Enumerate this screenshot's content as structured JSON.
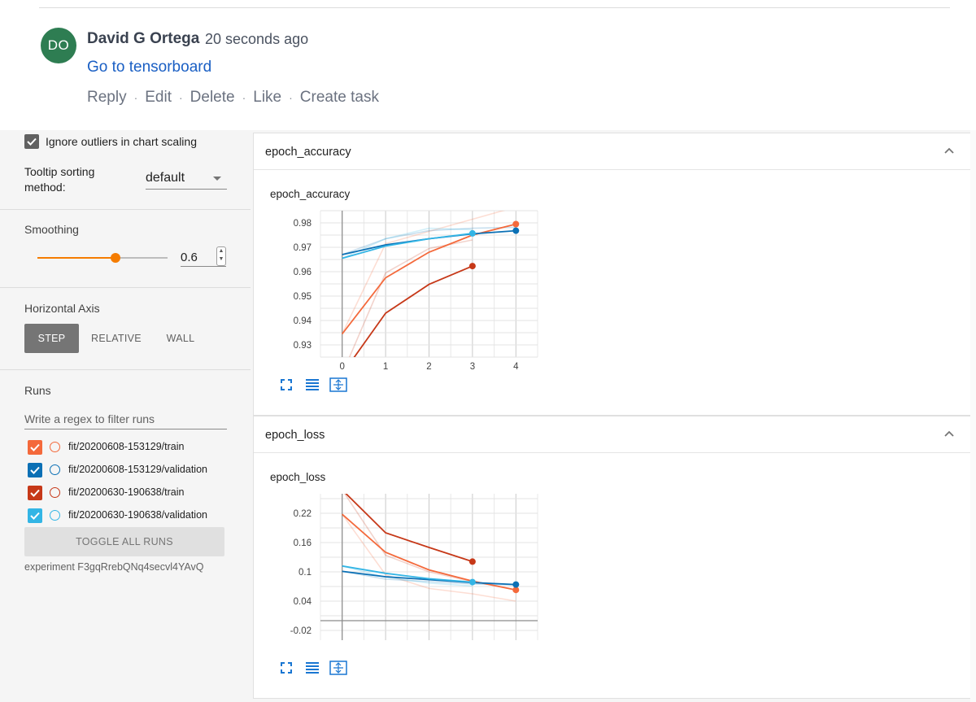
{
  "comment": {
    "avatar_initials": "DO",
    "author": "David G Ortega",
    "time": "20 seconds ago",
    "link": "Go to tensorboard",
    "actions": [
      "Reply",
      "Edit",
      "Delete",
      "Like",
      "Create task"
    ]
  },
  "sidebar": {
    "ignore_outliers_label": "Ignore outliers in chart scaling",
    "ignore_outliers_checked": true,
    "tooltip_sorting_label_1": "Tooltip sorting",
    "tooltip_sorting_label_2": "method:",
    "tooltip_sorting_value": "default",
    "smoothing_label": "Smoothing",
    "smoothing_value": "0.6",
    "smoothing_fraction": 0.6,
    "horizontal_axis_label": "Horizontal Axis",
    "axis_options": [
      "STEP",
      "RELATIVE",
      "WALL"
    ],
    "axis_selected": "STEP",
    "runs_label": "Runs",
    "filter_placeholder": "Write a regex to filter runs",
    "runs": [
      {
        "name": "fit/20200608-153129/train",
        "color": "#f4693b",
        "checked": true
      },
      {
        "name": "fit/20200608-153129/validation",
        "color": "#0b70b5",
        "checked": true
      },
      {
        "name": "fit/20200630-190638/train",
        "color": "#c63818",
        "checked": true
      },
      {
        "name": "fit/20200630-190638/validation",
        "color": "#33b5e5",
        "checked": true
      }
    ],
    "toggle_all_label": "TOGGLE ALL RUNS",
    "experiment_label": "experiment F3gqRrebQNq4secvl4YAvQ"
  },
  "cards": [
    {
      "header": "epoch_accuracy",
      "chart_title": "epoch_accuracy"
    },
    {
      "header": "epoch_loss",
      "chart_title": "epoch_loss"
    }
  ],
  "chart_data": [
    {
      "type": "line",
      "title": "epoch_accuracy",
      "xlabel": "",
      "ylabel": "",
      "x_ticks": [
        "0",
        "1",
        "2",
        "3",
        "4"
      ],
      "y_ticks": [
        "0.93",
        "0.94",
        "0.95",
        "0.96",
        "0.97",
        "0.98"
      ],
      "xlim": [
        -0.5,
        4.5
      ],
      "ylim": [
        0.925,
        0.985
      ],
      "grid": true,
      "series": [
        {
          "color": "#f4693b",
          "x": [
            0,
            1,
            2,
            3,
            4
          ],
          "y": [
            0.9345,
            0.9575,
            0.968,
            0.975,
            0.9795
          ]
        },
        {
          "color": "#0b70b5",
          "x": [
            0,
            1,
            2,
            3,
            4
          ],
          "y": [
            0.967,
            0.971,
            0.9735,
            0.9755,
            0.9768
          ]
        },
        {
          "color": "#c63818",
          "x": [
            0,
            1,
            2,
            3
          ],
          "y": [
            0.918,
            0.943,
            0.9548,
            0.9623
          ]
        },
        {
          "color": "#33b5e5",
          "x": [
            0,
            1,
            2,
            3
          ],
          "y": [
            0.9655,
            0.9705,
            0.9735,
            0.9757
          ]
        }
      ],
      "raw_series": [
        {
          "color": "#f4693b",
          "x": [
            0,
            1,
            2,
            3,
            4
          ],
          "y": [
            0.9345,
            0.9715,
            0.9765,
            0.9815,
            0.9865
          ]
        },
        {
          "color": "#0b70b5",
          "x": [
            0,
            1,
            2,
            3,
            4
          ],
          "y": [
            0.967,
            0.9735,
            0.9768,
            0.9778,
            0.9782
          ]
        },
        {
          "color": "#c63818",
          "x": [
            0,
            1,
            2,
            3
          ],
          "y": [
            0.918,
            0.9595,
            0.9695,
            0.973
          ]
        },
        {
          "color": "#33b5e5",
          "x": [
            0,
            1,
            2,
            3
          ],
          "y": [
            0.9655,
            0.9735,
            0.9778,
            0.9772
          ]
        }
      ]
    },
    {
      "type": "line",
      "title": "epoch_loss",
      "xlabel": "",
      "ylabel": "",
      "x_ticks": [],
      "y_ticks": [
        "-0.02",
        "0.04",
        "0.1",
        "0.16",
        "0.22"
      ],
      "xlim": [
        -0.5,
        4.5
      ],
      "ylim": [
        -0.04,
        0.26
      ],
      "grid": true,
      "series": [
        {
          "color": "#f4693b",
          "x": [
            0,
            1,
            2,
            3,
            4
          ],
          "y": [
            0.218,
            0.14,
            0.104,
            0.081,
            0.063
          ]
        },
        {
          "color": "#0b70b5",
          "x": [
            0,
            1,
            2,
            3,
            4
          ],
          "y": [
            0.101,
            0.09,
            0.084,
            0.078,
            0.074
          ]
        },
        {
          "color": "#c63818",
          "x": [
            0,
            1,
            2,
            3
          ],
          "y": [
            0.268,
            0.18,
            0.15,
            0.121
          ]
        },
        {
          "color": "#33b5e5",
          "x": [
            0,
            1,
            2,
            3
          ],
          "y": [
            0.112,
            0.097,
            0.086,
            0.079
          ]
        }
      ],
      "raw_series": [
        {
          "color": "#f4693b",
          "x": [
            0,
            1,
            2,
            3,
            4
          ],
          "y": [
            0.218,
            0.094,
            0.066,
            0.055,
            0.04
          ]
        },
        {
          "color": "#0b70b5",
          "x": [
            0,
            1,
            2,
            3,
            4
          ],
          "y": [
            0.101,
            0.085,
            0.08,
            0.075,
            0.073
          ]
        },
        {
          "color": "#c63818",
          "x": [
            0,
            1,
            2,
            3
          ],
          "y": [
            0.268,
            0.134,
            0.1,
            0.08
          ]
        },
        {
          "color": "#33b5e5",
          "x": [
            0,
            1,
            2,
            3
          ],
          "y": [
            0.112,
            0.089,
            0.077,
            0.071
          ]
        }
      ]
    }
  ]
}
